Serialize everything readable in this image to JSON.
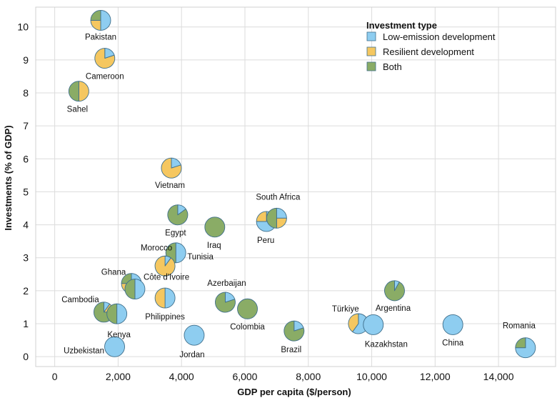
{
  "chart_data": {
    "type": "scatter",
    "subtype": "pie-markers",
    "xlabel": "GDP per capita ($/person)",
    "ylabel": "Investments (% of GDP)",
    "xlim": [
      -600,
      15800
    ],
    "ylim": [
      -0.3,
      10.6
    ],
    "xticks": [
      0,
      2000,
      4000,
      6000,
      8000,
      10000,
      12000,
      14000
    ],
    "xtick_labels": [
      "0",
      "2,000",
      "4,000",
      "6,000",
      "8,000",
      "10,000",
      "12,000",
      "14,000"
    ],
    "yticks": [
      0,
      1,
      2,
      3,
      4,
      5,
      6,
      7,
      8,
      9,
      10
    ],
    "ytick_labels": [
      "0",
      "1",
      "2",
      "3",
      "4",
      "5",
      "6",
      "7",
      "8",
      "9",
      "10"
    ],
    "grid": true,
    "legend": {
      "title": "Investment type",
      "placement": "top-right",
      "items": [
        {
          "label": "Low-emission development",
          "key": "low",
          "color": "#8ecdf0"
        },
        {
          "label": "Resilient development",
          "key": "resilient",
          "color": "#f5c760"
        },
        {
          "label": "Both",
          "key": "both",
          "color": "#8aac66"
        }
      ]
    },
    "colors": {
      "low": "#8ecdf0",
      "resilient": "#f5c760",
      "both": "#8aac66",
      "outline": "#3f6f8c"
    },
    "points": [
      {
        "name": "Pakistan",
        "x": 1450,
        "y": 10.2,
        "shares": {
          "low": 0.5,
          "resilient": 0.25,
          "both": 0.25
        }
      },
      {
        "name": "Cameroon",
        "x": 1580,
        "y": 9.05,
        "shares": {
          "low": 0.2,
          "resilient": 0.8,
          "both": 0
        }
      },
      {
        "name": "Sahel",
        "x": 760,
        "y": 8.05,
        "shares": {
          "low": 0,
          "resilient": 0.5,
          "both": 0.5
        }
      },
      {
        "name": "Vietnam",
        "x": 3680,
        "y": 5.72,
        "shares": {
          "low": 0.2,
          "resilient": 0.8,
          "both": 0
        }
      },
      {
        "name": "Egypt",
        "x": 3880,
        "y": 4.3,
        "shares": {
          "low": 0.15,
          "resilient": 0,
          "both": 0.85
        }
      },
      {
        "name": "Iraq",
        "x": 5050,
        "y": 3.93,
        "shares": {
          "low": 0,
          "resilient": 0,
          "both": 1
        }
      },
      {
        "name": "Peru",
        "x": 6680,
        "y": 4.1,
        "shares": {
          "low": 0.75,
          "resilient": 0.25,
          "both": 0
        }
      },
      {
        "name": "South Africa",
        "x": 7000,
        "y": 4.2,
        "shares": {
          "low": 0.25,
          "resilient": 0.25,
          "both": 0.5
        }
      },
      {
        "name": "Tunisia",
        "x": 3820,
        "y": 3.15,
        "shares": {
          "low": 0.5,
          "resilient": 0,
          "both": 0.5
        }
      },
      {
        "name": "Morocco",
        "x": 3480,
        "y": 2.75,
        "shares": {
          "low": 0.1,
          "resilient": 0.9,
          "both": 0
        }
      },
      {
        "name": "Ghana",
        "x": 2420,
        "y": 2.22,
        "shares": {
          "low": 0.2,
          "resilient": 0.55,
          "both": 0.25
        }
      },
      {
        "name": "Côte d'Ivoire",
        "x": 2530,
        "y": 2.05,
        "shares": {
          "low": 0.5,
          "resilient": 0,
          "both": 0.5
        }
      },
      {
        "name": "Philippines",
        "x": 3480,
        "y": 1.78,
        "shares": {
          "low": 0.5,
          "resilient": 0.5,
          "both": 0
        }
      },
      {
        "name": "Azerbaijan",
        "x": 5380,
        "y": 1.65,
        "shares": {
          "low": 0.2,
          "resilient": 0,
          "both": 0.8
        }
      },
      {
        "name": "Colombia",
        "x": 6080,
        "y": 1.45,
        "shares": {
          "low": 0,
          "resilient": 0,
          "both": 1
        }
      },
      {
        "name": "Cambodia",
        "x": 1550,
        "y": 1.35,
        "shares": {
          "low": 0.1,
          "resilient": 0.15,
          "both": 0.75
        }
      },
      {
        "name": "Kenya",
        "x": 1960,
        "y": 1.3,
        "shares": {
          "low": 0.5,
          "resilient": 0,
          "both": 0.5
        }
      },
      {
        "name": "Jordan",
        "x": 4400,
        "y": 0.65,
        "shares": {
          "low": 1,
          "resilient": 0,
          "both": 0
        }
      },
      {
        "name": "Uzbekistan",
        "x": 1890,
        "y": 0.3,
        "shares": {
          "low": 1,
          "resilient": 0,
          "both": 0
        }
      },
      {
        "name": "Brazil",
        "x": 7550,
        "y": 0.78,
        "shares": {
          "low": 0.2,
          "resilient": 0,
          "both": 0.8
        }
      },
      {
        "name": "Argentina",
        "x": 10720,
        "y": 2.0,
        "shares": {
          "low": 0.08,
          "resilient": 0,
          "both": 0.92
        }
      },
      {
        "name": "Türkiye",
        "x": 9580,
        "y": 1.0,
        "shares": {
          "low": 0.6,
          "resilient": 0.4,
          "both": 0
        }
      },
      {
        "name": "Kazakhstan",
        "x": 10050,
        "y": 0.97,
        "shares": {
          "low": 1,
          "resilient": 0,
          "both": 0
        }
      },
      {
        "name": "China",
        "x": 12560,
        "y": 0.97,
        "shares": {
          "low": 1,
          "resilient": 0,
          "both": 0
        }
      },
      {
        "name": "Romania",
        "x": 14850,
        "y": 0.27,
        "shares": {
          "low": 0.75,
          "resilient": 0,
          "both": 0.25
        }
      }
    ]
  }
}
